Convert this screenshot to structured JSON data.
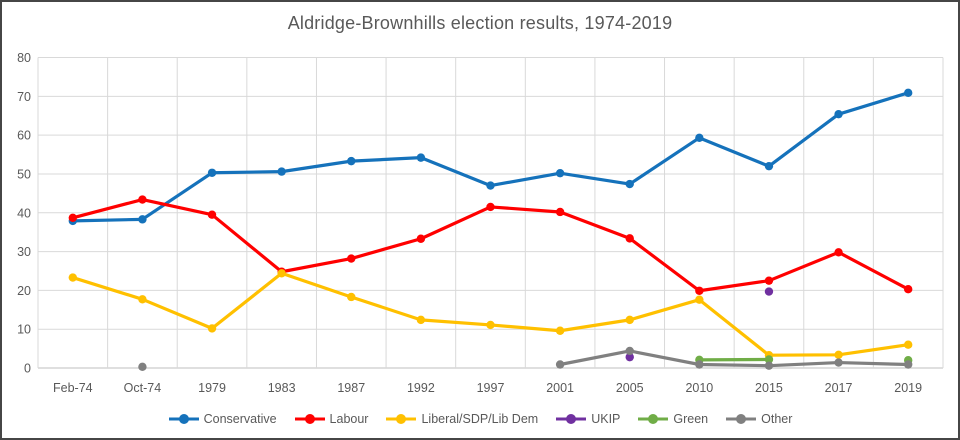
{
  "window": {
    "background_color": "#FFFFFF",
    "border_color": "#464646"
  },
  "styles": {
    "grid_color": "#D9D9D9",
    "baseline_color": "#BFBFBF",
    "axis_text_color": "#595959",
    "title_color": "#595959"
  },
  "chart_data": {
    "type": "line",
    "title": "Aldridge-Brownhills election results, 1974-2019",
    "xlabel": "",
    "ylabel": "",
    "grid": true,
    "legend_position": "bottom",
    "ylim": [
      0,
      80
    ],
    "y_ticks": [
      0,
      10,
      20,
      30,
      40,
      50,
      60,
      70,
      80
    ],
    "categories": [
      "Feb-74",
      "Oct-74",
      "1979",
      "1983",
      "1987",
      "1992",
      "1997",
      "2001",
      "2005",
      "2010",
      "2015",
      "2017",
      "2019"
    ],
    "series": [
      {
        "name": "Conservative",
        "color": "#1572BB",
        "values": [
          37.9,
          38.3,
          50.3,
          50.6,
          53.3,
          54.2,
          47.0,
          50.2,
          47.4,
          59.3,
          52.0,
          65.4,
          70.9
        ]
      },
      {
        "name": "Labour",
        "color": "#FF0000",
        "values": [
          38.7,
          43.4,
          39.5,
          24.8,
          28.2,
          33.3,
          41.5,
          40.2,
          33.4,
          19.9,
          22.5,
          29.8,
          20.3
        ]
      },
      {
        "name": "Liberal/SDP/Lib Dem",
        "color": "#FFC000",
        "values": [
          23.3,
          17.7,
          10.2,
          24.4,
          18.3,
          12.4,
          11.1,
          9.6,
          12.4,
          17.6,
          3.3,
          3.4,
          6.0
        ]
      },
      {
        "name": "UKIP",
        "color": "#7030A0",
        "values": [
          null,
          null,
          null,
          null,
          null,
          null,
          null,
          null,
          2.8,
          null,
          19.7,
          null,
          null
        ]
      },
      {
        "name": "Green",
        "color": "#70AD47",
        "values": [
          null,
          null,
          null,
          null,
          null,
          null,
          null,
          null,
          null,
          2.1,
          2.2,
          null,
          2.0
        ]
      },
      {
        "name": "Other",
        "color": "#808080",
        "values": [
          null,
          0.3,
          null,
          null,
          null,
          null,
          null,
          0.9,
          4.4,
          0.9,
          0.6,
          1.4,
          0.9
        ]
      }
    ]
  }
}
